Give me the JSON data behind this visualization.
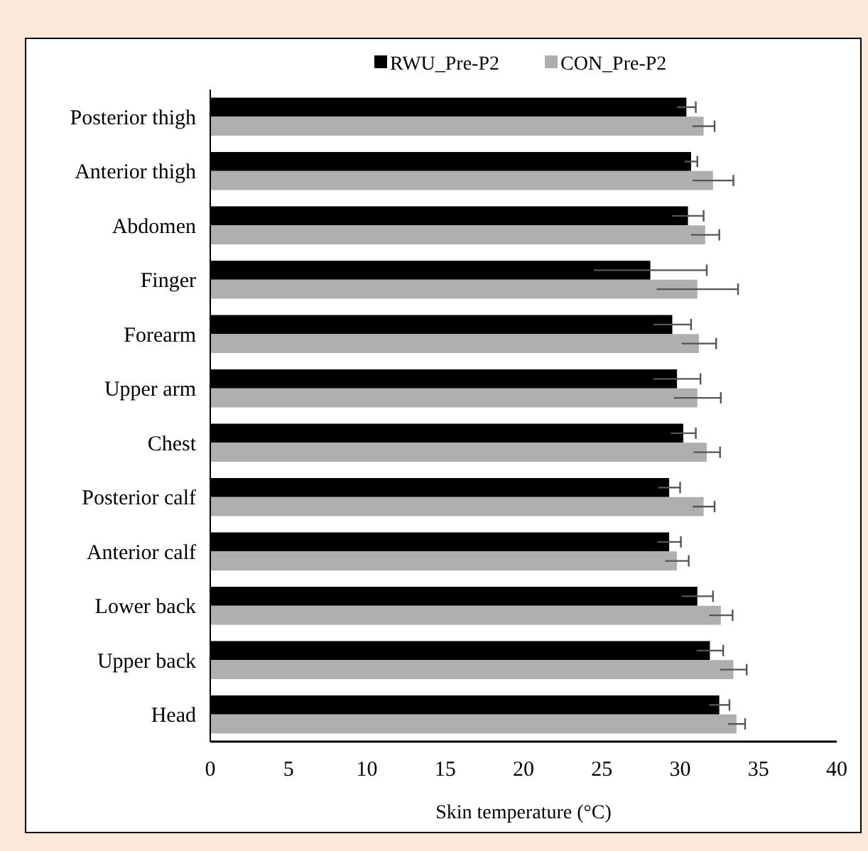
{
  "chart_data": {
    "type": "bar",
    "orientation": "horizontal",
    "xlabel": "Skin temperature (°C)",
    "categories": [
      "Posterior thigh",
      "Anterior thigh",
      "Abdomen",
      "Finger",
      "Forearm",
      "Upper arm",
      "Chest",
      "Posterior calf",
      "Anterior calf",
      "Lower back",
      "Upper back",
      "Head"
    ],
    "series": [
      {
        "name": "RWU_Pre-P2",
        "color": "#000000",
        "values": [
          30.4,
          30.7,
          30.5,
          28.1,
          29.5,
          29.8,
          30.2,
          29.3,
          29.3,
          31.1,
          31.9,
          32.5
        ],
        "errors": [
          0.6,
          0.4,
          1.0,
          3.6,
          1.2,
          1.5,
          0.8,
          0.7,
          0.75,
          1.0,
          0.85,
          0.65
        ]
      },
      {
        "name": "CON_Pre-P2",
        "color": "#b0aeae",
        "values": [
          31.5,
          32.1,
          31.6,
          31.1,
          31.2,
          31.1,
          31.7,
          31.5,
          29.8,
          32.6,
          33.4,
          33.6
        ],
        "errors": [
          0.7,
          1.3,
          0.9,
          2.6,
          1.1,
          1.5,
          0.85,
          0.7,
          0.75,
          0.75,
          0.85,
          0.55
        ]
      }
    ],
    "xlim": [
      0,
      40
    ],
    "xticks": [
      0,
      5,
      10,
      15,
      20,
      25,
      30,
      35,
      40
    ],
    "grid": false,
    "legend": "top"
  }
}
